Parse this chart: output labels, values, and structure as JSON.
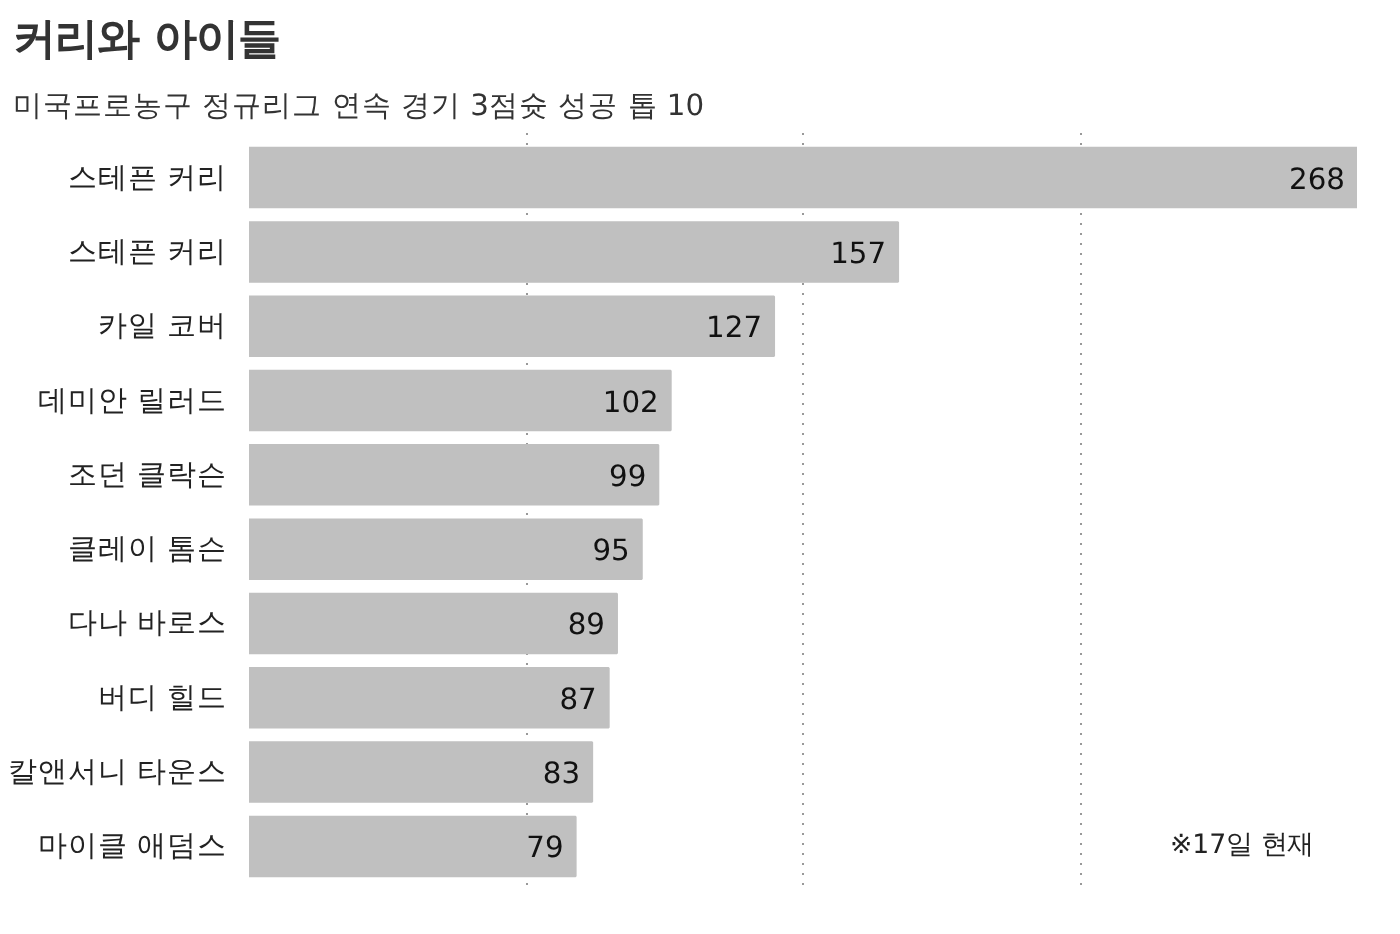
{
  "chart_data": {
    "type": "bar",
    "orientation": "horizontal",
    "title": "커리와 아이들",
    "subtitle": "미국프로농구 정규리그 연속 경기 3점슛 성공 톱 10",
    "categories": [
      "스테픈 커리",
      "스테픈 커리",
      "카일 코버",
      "데미안 릴러드",
      "조던 클락슨",
      "클레이 톰슨",
      "다나 바로스",
      "버디 힐드",
      "칼앤서니 타운스",
      "마이클 애덤스"
    ],
    "values": [
      268,
      157,
      127,
      102,
      99,
      95,
      89,
      87,
      83,
      79
    ],
    "color": "#c0c0c0",
    "data_labels": true,
    "xlim": [
      0,
      268
    ],
    "xticks": [
      {
        "value": 67,
        "label": null
      },
      {
        "value": 134,
        "label": null
      },
      {
        "value": 201,
        "label": null
      }
    ],
    "grid": "x",
    "tick_labels": "y",
    "annotations": [
      "※17일 현재"
    ]
  }
}
